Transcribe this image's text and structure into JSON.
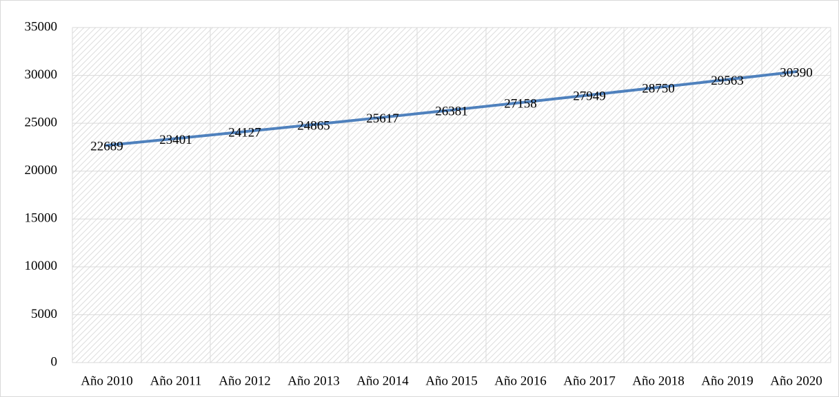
{
  "chart_data": {
    "type": "line",
    "categories": [
      "Año 2010",
      "Año 2011",
      "Año 2012",
      "Año 2013",
      "Año 2014",
      "Año 2015",
      "Año 2016",
      "Año 2017",
      "Año 2018",
      "Año 2019",
      "Año 2020"
    ],
    "values": [
      22689,
      23401,
      24127,
      24865,
      25617,
      26381,
      27158,
      27949,
      28750,
      29563,
      30390
    ],
    "color": "#4f81bd",
    "ylim": [
      0,
      35000
    ],
    "yticks": [
      0,
      5000,
      10000,
      15000,
      20000,
      25000,
      30000,
      35000
    ],
    "grid": true,
    "data_labels": true
  }
}
